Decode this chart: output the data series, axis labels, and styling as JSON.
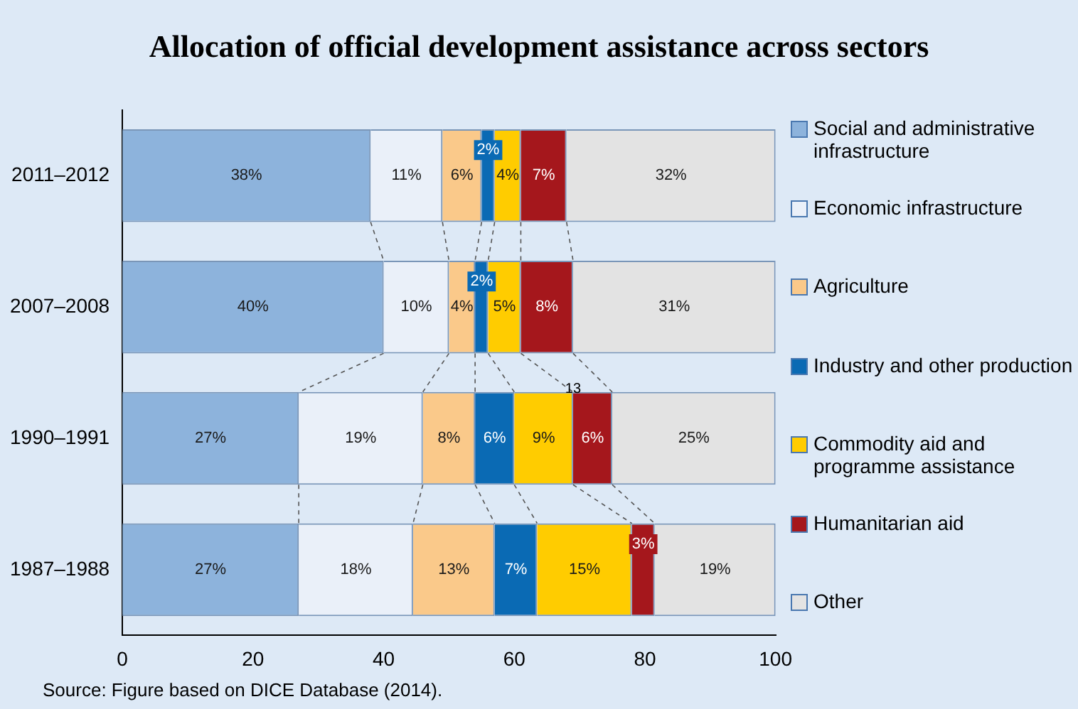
{
  "chart_data": {
    "type": "bar",
    "orientation": "horizontal",
    "stacked": true,
    "title": "Allocation of official development assistance across sectors",
    "categories": [
      "2011–2012",
      "2007–2008",
      "1990–1991",
      "1987–1988"
    ],
    "series": [
      {
        "name": "Social and administrative infrastructure",
        "color": "#8db3dc",
        "values": [
          38,
          40,
          27,
          27
        ],
        "value_labels": [
          "38%",
          "40%",
          "27%",
          "27%"
        ]
      },
      {
        "name": "Economic infrastructure",
        "color": "#eaf0f9",
        "values": [
          11,
          10,
          19,
          17.5
        ],
        "value_labels": [
          "11%",
          "10%",
          "19%",
          "18%"
        ]
      },
      {
        "name": "Agriculture",
        "color": "#fac98a",
        "values": [
          6,
          4,
          8,
          12.5
        ],
        "value_labels": [
          "6%",
          "4%",
          "8%",
          "13%"
        ]
      },
      {
        "name": "Industry and other production",
        "color": "#0a6ab4",
        "values": [
          2,
          2,
          6,
          6.5
        ],
        "value_labels": [
          "2%",
          "2%",
          "6%",
          "7%"
        ]
      },
      {
        "name": "Commodity aid and programme assistance",
        "color": "#ffcc00",
        "values": [
          4,
          5,
          9,
          14.5
        ],
        "value_labels": [
          "4%",
          "5%",
          "9%",
          "15%"
        ]
      },
      {
        "name": "Humanitarian aid",
        "color": "#a5171c",
        "values": [
          7,
          8,
          6,
          3.5
        ],
        "value_labels": [
          "7%",
          "8%",
          "6%",
          "3%"
        ]
      },
      {
        "name": "Other",
        "color": "#e3e3e3",
        "values": [
          32,
          31,
          25,
          18.5
        ],
        "value_labels": [
          "32%",
          "31%",
          "25%",
          "19%"
        ]
      }
    ],
    "xlim": [
      0,
      100
    ],
    "xticks": [
      0,
      20,
      40,
      60,
      80,
      100
    ],
    "grid": false,
    "legend": "right",
    "annotations": [
      {
        "text": "13",
        "x": 69,
        "y": "1990–1991"
      },
      "Source: Figure based on DICE Database (2014)."
    ]
  }
}
